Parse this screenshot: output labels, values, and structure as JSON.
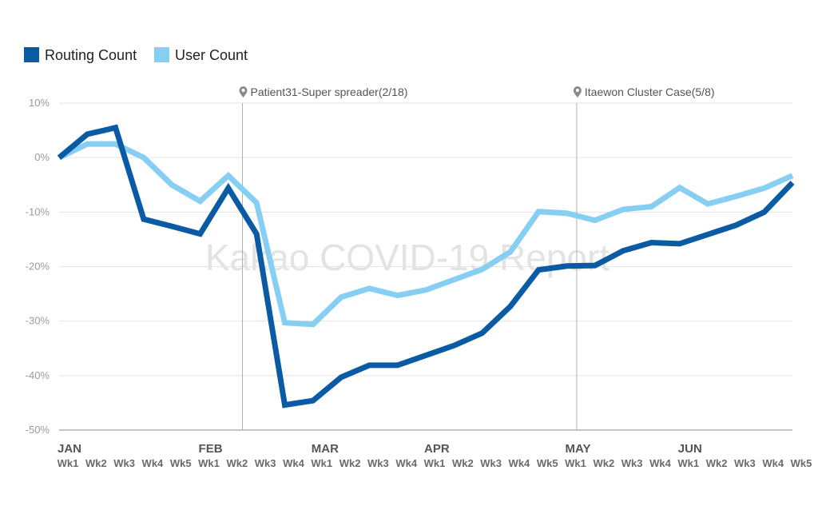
{
  "chart_data": {
    "type": "line",
    "watermark": "Kakao COVID-19 Report",
    "legend": [
      {
        "label": "Routing Count",
        "color": "#0a5aa4"
      },
      {
        "label": "User Count",
        "color": "#86cff3"
      }
    ],
    "yticks": [
      "10%",
      "0%",
      "-10%",
      "-20%",
      "-30%",
      "-40%",
      "-50%"
    ],
    "ylim": [
      -50,
      10
    ],
    "grid": true,
    "months": [
      {
        "label": "JAN",
        "start": 0
      },
      {
        "label": "FEB",
        "start": 5
      },
      {
        "label": "MAR",
        "start": 9
      },
      {
        "label": "APR",
        "start": 13
      },
      {
        "label": "MAY",
        "start": 18
      },
      {
        "label": "JUN",
        "start": 22
      }
    ],
    "weeks": [
      "Wk1",
      "Wk2",
      "Wk3",
      "Wk4",
      "Wk5",
      "Wk1",
      "Wk2",
      "Wk3",
      "Wk4",
      "Wk1",
      "Wk2",
      "Wk3",
      "Wk4",
      "Wk1",
      "Wk2",
      "Wk3",
      "Wk4",
      "Wk5",
      "Wk1",
      "Wk2",
      "Wk3",
      "Wk4",
      "Wk1",
      "Wk2",
      "Wk3",
      "Wk4",
      "Wk5"
    ],
    "annotations": [
      {
        "label": "Patient31-Super spreader(2/18)",
        "x": 6.5
      },
      {
        "label": "Itaewon Cluster Case(5/8)",
        "x": 18.35
      }
    ],
    "series": [
      {
        "name": "Routing Count",
        "color": "#0a5aa4",
        "values": [
          0,
          4.3,
          5.5,
          -11.3,
          -12.6,
          -14,
          -5.6,
          -14,
          -45.4,
          -44.6,
          -40.3,
          -38.1,
          -38.1,
          -36.3,
          -34.5,
          -32.2,
          -27.3,
          -20.6,
          -19.9,
          -19.8,
          -17.1,
          -15.6,
          -15.8,
          -14.1,
          -12.4,
          -10,
          -4.6
        ]
      },
      {
        "name": "User Count",
        "color": "#86cff3",
        "values": [
          0,
          2.5,
          2.5,
          0,
          -5,
          -8,
          -3.3,
          -8.3,
          -30.3,
          -30.6,
          -25.6,
          -24,
          -25.3,
          -24.3,
          -22.4,
          -20.5,
          -17.3,
          -9.9,
          -10.2,
          -11.5,
          -9.5,
          -9,
          -5.5,
          -8.5,
          -7.1,
          -5.6,
          -3.3
        ]
      }
    ]
  }
}
